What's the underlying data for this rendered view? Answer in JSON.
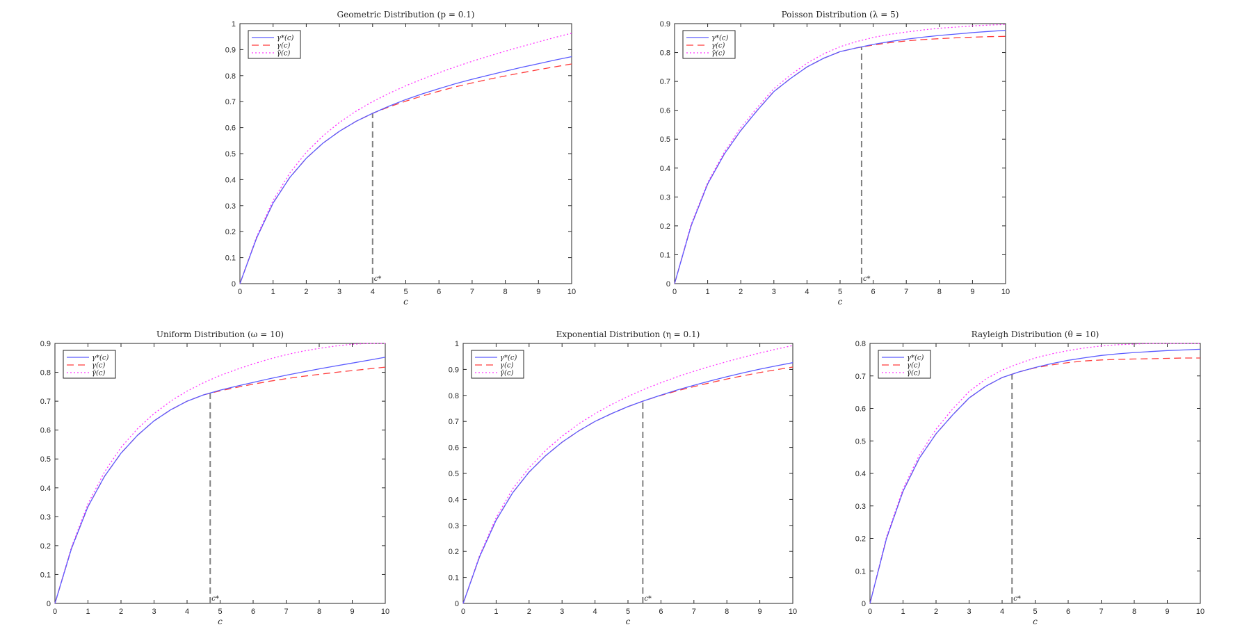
{
  "chart_data": [
    {
      "type": "line",
      "title": "Geometric Distribution (p = 0.1)",
      "xlabel": "c",
      "ylabel": "",
      "xlim": [
        0,
        10
      ],
      "ylim": [
        0,
        1
      ],
      "xticks": [
        "0",
        "1",
        "2",
        "3",
        "4",
        "5",
        "6",
        "7",
        "8",
        "9",
        "10"
      ],
      "yticks": [
        "0",
        "0.1",
        "0.2",
        "0.3",
        "0.4",
        "0.5",
        "0.6",
        "0.7",
        "0.8",
        "0.9",
        "1"
      ],
      "legend_position": "top-left",
      "cstar": 4.0,
      "cstar_label": "c*",
      "x": [
        0,
        0.5,
        1,
        1.5,
        2,
        2.5,
        3,
        3.5,
        4,
        4.5,
        5,
        5.5,
        6,
        6.5,
        7,
        7.5,
        8,
        8.5,
        9,
        9.5,
        10
      ],
      "series": [
        {
          "name": "γ*(c)",
          "color": "#5b5bff",
          "style": "solid",
          "values": [
            0,
            0.175,
            0.31,
            0.408,
            0.482,
            0.54,
            0.586,
            0.624,
            0.655,
            0.683,
            0.708,
            0.73,
            0.75,
            0.769,
            0.786,
            0.802,
            0.817,
            0.832,
            0.846,
            0.86,
            0.873
          ]
        },
        {
          "name": "γ(c)",
          "color": "#ff3b3b",
          "style": "dashed",
          "values": [
            0,
            0.175,
            0.31,
            0.408,
            0.482,
            0.54,
            0.586,
            0.624,
            0.655,
            0.68,
            0.702,
            0.722,
            0.74,
            0.757,
            0.772,
            0.786,
            0.799,
            0.811,
            0.823,
            0.834,
            0.845
          ]
        },
        {
          "name": "γ̄(c)",
          "color": "#ff33ff",
          "style": "dotted",
          "values": [
            0,
            0.18,
            0.32,
            0.425,
            0.505,
            0.568,
            0.62,
            0.663,
            0.7,
            0.732,
            0.761,
            0.787,
            0.811,
            0.834,
            0.855,
            0.875,
            0.894,
            0.912,
            0.93,
            0.947,
            0.963
          ]
        }
      ]
    },
    {
      "type": "line",
      "title": "Poisson Distribution (λ = 5)",
      "xlabel": "c",
      "ylabel": "",
      "xlim": [
        0,
        10
      ],
      "ylim": [
        0,
        0.9
      ],
      "xticks": [
        "0",
        "1",
        "2",
        "3",
        "4",
        "5",
        "6",
        "7",
        "8",
        "9",
        "10"
      ],
      "yticks": [
        "0",
        "0.1",
        "0.2",
        "0.3",
        "0.4",
        "0.5",
        "0.6",
        "0.7",
        "0.8",
        "0.9"
      ],
      "legend_position": "top-left",
      "cstar": 5.65,
      "cstar_label": "c*",
      "x": [
        0,
        0.5,
        1,
        1.5,
        2,
        2.5,
        3,
        3.5,
        4,
        4.5,
        5,
        5.5,
        6,
        6.5,
        7,
        7.5,
        8,
        8.5,
        9,
        9.5,
        10
      ],
      "series": [
        {
          "name": "γ*(c)",
          "color": "#5b5bff",
          "style": "solid",
          "values": [
            0,
            0.2,
            0.345,
            0.448,
            0.53,
            0.6,
            0.665,
            0.71,
            0.75,
            0.78,
            0.803,
            0.816,
            0.828,
            0.838,
            0.846,
            0.853,
            0.859,
            0.864,
            0.869,
            0.873,
            0.877
          ]
        },
        {
          "name": "γ(c)",
          "color": "#ff3b3b",
          "style": "dashed",
          "values": [
            0,
            0.2,
            0.345,
            0.448,
            0.53,
            0.6,
            0.665,
            0.71,
            0.75,
            0.78,
            0.803,
            0.816,
            0.826,
            0.834,
            0.84,
            0.845,
            0.848,
            0.851,
            0.853,
            0.855,
            0.856
          ]
        },
        {
          "name": "γ̄(c)",
          "color": "#ff33ff",
          "style": "dotted",
          "values": [
            0,
            0.205,
            0.35,
            0.455,
            0.54,
            0.61,
            0.675,
            0.722,
            0.763,
            0.795,
            0.82,
            0.838,
            0.852,
            0.863,
            0.871,
            0.878,
            0.884,
            0.888,
            0.892,
            0.895,
            0.897
          ]
        }
      ]
    },
    {
      "type": "line",
      "title": "Uniform Distribution (ω = 10)",
      "xlabel": "c",
      "ylabel": "",
      "xlim": [
        0,
        10
      ],
      "ylim": [
        0,
        0.9
      ],
      "xticks": [
        "0",
        "1",
        "2",
        "3",
        "4",
        "5",
        "6",
        "7",
        "8",
        "9",
        "10"
      ],
      "yticks": [
        "0",
        "0.1",
        "0.2",
        "0.3",
        "0.4",
        "0.5",
        "0.6",
        "0.7",
        "0.8",
        "0.9"
      ],
      "legend_position": "top-left",
      "cstar": 4.7,
      "cstar_label": "c*",
      "x": [
        0,
        0.5,
        1,
        1.5,
        2,
        2.5,
        3,
        3.5,
        4,
        4.5,
        5,
        5.5,
        6,
        6.5,
        7,
        7.5,
        8,
        8.5,
        9,
        9.5,
        10
      ],
      "series": [
        {
          "name": "γ*(c)",
          "color": "#5b5bff",
          "style": "solid",
          "values": [
            0,
            0.19,
            0.335,
            0.44,
            0.52,
            0.582,
            0.632,
            0.67,
            0.7,
            0.722,
            0.738,
            0.752,
            0.765,
            0.778,
            0.79,
            0.801,
            0.812,
            0.822,
            0.832,
            0.842,
            0.852
          ]
        },
        {
          "name": "γ(c)",
          "color": "#ff3b3b",
          "style": "dashed",
          "values": [
            0,
            0.19,
            0.335,
            0.44,
            0.52,
            0.582,
            0.632,
            0.67,
            0.7,
            0.722,
            0.736,
            0.748,
            0.759,
            0.769,
            0.778,
            0.786,
            0.793,
            0.8,
            0.806,
            0.812,
            0.818
          ]
        },
        {
          "name": "γ̄(c)",
          "color": "#ff33ff",
          "style": "dotted",
          "values": [
            0,
            0.195,
            0.345,
            0.455,
            0.54,
            0.605,
            0.657,
            0.7,
            0.735,
            0.764,
            0.789,
            0.81,
            0.829,
            0.846,
            0.861,
            0.873,
            0.883,
            0.891,
            0.897,
            0.9,
            0.9
          ]
        }
      ]
    },
    {
      "type": "line",
      "title": "Exponential Distribution (η = 0.1)",
      "xlabel": "c",
      "ylabel": "",
      "xlim": [
        0,
        10
      ],
      "ylim": [
        0,
        1
      ],
      "xticks": [
        "0",
        "1",
        "2",
        "3",
        "4",
        "5",
        "6",
        "7",
        "8",
        "9",
        "10"
      ],
      "yticks": [
        "0",
        "0.1",
        "0.2",
        "0.3",
        "0.4",
        "0.5",
        "0.6",
        "0.7",
        "0.8",
        "0.9",
        "1"
      ],
      "legend_position": "top-left",
      "cstar": 5.45,
      "cstar_label": "c*",
      "x": [
        0,
        0.5,
        1,
        1.5,
        2,
        2.5,
        3,
        3.5,
        4,
        4.5,
        5,
        5.5,
        6,
        6.5,
        7,
        7.5,
        8,
        8.5,
        9,
        9.5,
        10
      ],
      "series": [
        {
          "name": "γ*(c)",
          "color": "#5b5bff",
          "style": "solid",
          "values": [
            0,
            0.18,
            0.32,
            0.425,
            0.505,
            0.568,
            0.62,
            0.663,
            0.7,
            0.73,
            0.757,
            0.78,
            0.801,
            0.821,
            0.839,
            0.856,
            0.872,
            0.887,
            0.901,
            0.914,
            0.926
          ]
        },
        {
          "name": "γ(c)",
          "color": "#ff3b3b",
          "style": "dashed",
          "values": [
            0,
            0.18,
            0.32,
            0.425,
            0.505,
            0.568,
            0.62,
            0.663,
            0.7,
            0.73,
            0.757,
            0.78,
            0.8,
            0.818,
            0.834,
            0.849,
            0.863,
            0.876,
            0.888,
            0.899,
            0.909
          ]
        },
        {
          "name": "γ̄(c)",
          "color": "#ff33ff",
          "style": "dotted",
          "values": [
            0,
            0.185,
            0.33,
            0.44,
            0.522,
            0.588,
            0.643,
            0.69,
            0.73,
            0.765,
            0.796,
            0.824,
            0.849,
            0.872,
            0.893,
            0.912,
            0.93,
            0.947,
            0.963,
            0.978,
            0.992
          ]
        }
      ]
    },
    {
      "type": "line",
      "title": "Rayleigh Distribution (θ = 10)",
      "xlabel": "c",
      "ylabel": "",
      "xlim": [
        0,
        10
      ],
      "ylim": [
        0,
        0.8
      ],
      "xticks": [
        "0",
        "1",
        "2",
        "3",
        "4",
        "5",
        "6",
        "7",
        "8",
        "9",
        "10"
      ],
      "yticks": [
        "0",
        "0.1",
        "0.2",
        "0.3",
        "0.4",
        "0.5",
        "0.6",
        "0.7",
        "0.8"
      ],
      "legend_position": "top-left",
      "cstar": 4.3,
      "cstar_label": "c*",
      "x": [
        0,
        0.5,
        1,
        1.5,
        2,
        2.5,
        3,
        3.5,
        4,
        4.5,
        5,
        5.5,
        6,
        6.5,
        7,
        7.5,
        8,
        8.5,
        9,
        9.5,
        10
      ],
      "series": [
        {
          "name": "γ*(c)",
          "color": "#5b5bff",
          "style": "solid",
          "values": [
            0,
            0.2,
            0.345,
            0.448,
            0.522,
            0.58,
            0.632,
            0.668,
            0.695,
            0.712,
            0.726,
            0.738,
            0.748,
            0.756,
            0.763,
            0.768,
            0.772,
            0.775,
            0.778,
            0.78,
            0.782
          ]
        },
        {
          "name": "γ(c)",
          "color": "#ff3b3b",
          "style": "dashed",
          "values": [
            0,
            0.2,
            0.345,
            0.448,
            0.522,
            0.58,
            0.632,
            0.668,
            0.695,
            0.712,
            0.725,
            0.734,
            0.741,
            0.746,
            0.749,
            0.751,
            0.752,
            0.753,
            0.754,
            0.755,
            0.755
          ]
        },
        {
          "name": "γ̄(c)",
          "color": "#ff33ff",
          "style": "dotted",
          "values": [
            0,
            0.205,
            0.352,
            0.458,
            0.536,
            0.598,
            0.652,
            0.69,
            0.718,
            0.738,
            0.755,
            0.768,
            0.778,
            0.786,
            0.792,
            0.796,
            0.798,
            0.8,
            0.8,
            0.8,
            0.8
          ]
        }
      ]
    }
  ]
}
